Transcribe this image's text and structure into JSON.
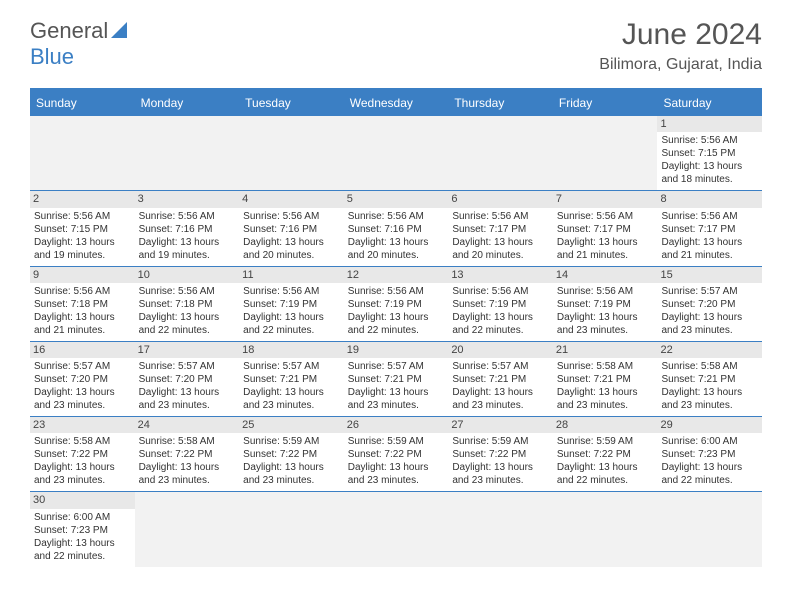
{
  "logo": {
    "part1": "General",
    "part2": "Blue"
  },
  "header": {
    "month_title": "June 2024",
    "location": "Bilimora, Gujarat, India"
  },
  "colors": {
    "brand": "#3b7fc4",
    "text": "#555555",
    "cell_header_bg": "#e8e8e8",
    "empty_bg": "#f2f2f2"
  },
  "weekdays": [
    "Sunday",
    "Monday",
    "Tuesday",
    "Wednesday",
    "Thursday",
    "Friday",
    "Saturday"
  ],
  "weeks": [
    [
      null,
      null,
      null,
      null,
      null,
      null,
      {
        "n": "1",
        "sunrise": "Sunrise: 5:56 AM",
        "sunset": "Sunset: 7:15 PM",
        "daylight": "Daylight: 13 hours and 18 minutes."
      }
    ],
    [
      {
        "n": "2",
        "sunrise": "Sunrise: 5:56 AM",
        "sunset": "Sunset: 7:15 PM",
        "daylight": "Daylight: 13 hours and 19 minutes."
      },
      {
        "n": "3",
        "sunrise": "Sunrise: 5:56 AM",
        "sunset": "Sunset: 7:16 PM",
        "daylight": "Daylight: 13 hours and 19 minutes."
      },
      {
        "n": "4",
        "sunrise": "Sunrise: 5:56 AM",
        "sunset": "Sunset: 7:16 PM",
        "daylight": "Daylight: 13 hours and 20 minutes."
      },
      {
        "n": "5",
        "sunrise": "Sunrise: 5:56 AM",
        "sunset": "Sunset: 7:16 PM",
        "daylight": "Daylight: 13 hours and 20 minutes."
      },
      {
        "n": "6",
        "sunrise": "Sunrise: 5:56 AM",
        "sunset": "Sunset: 7:17 PM",
        "daylight": "Daylight: 13 hours and 20 minutes."
      },
      {
        "n": "7",
        "sunrise": "Sunrise: 5:56 AM",
        "sunset": "Sunset: 7:17 PM",
        "daylight": "Daylight: 13 hours and 21 minutes."
      },
      {
        "n": "8",
        "sunrise": "Sunrise: 5:56 AM",
        "sunset": "Sunset: 7:17 PM",
        "daylight": "Daylight: 13 hours and 21 minutes."
      }
    ],
    [
      {
        "n": "9",
        "sunrise": "Sunrise: 5:56 AM",
        "sunset": "Sunset: 7:18 PM",
        "daylight": "Daylight: 13 hours and 21 minutes."
      },
      {
        "n": "10",
        "sunrise": "Sunrise: 5:56 AM",
        "sunset": "Sunset: 7:18 PM",
        "daylight": "Daylight: 13 hours and 22 minutes."
      },
      {
        "n": "11",
        "sunrise": "Sunrise: 5:56 AM",
        "sunset": "Sunset: 7:19 PM",
        "daylight": "Daylight: 13 hours and 22 minutes."
      },
      {
        "n": "12",
        "sunrise": "Sunrise: 5:56 AM",
        "sunset": "Sunset: 7:19 PM",
        "daylight": "Daylight: 13 hours and 22 minutes."
      },
      {
        "n": "13",
        "sunrise": "Sunrise: 5:56 AM",
        "sunset": "Sunset: 7:19 PM",
        "daylight": "Daylight: 13 hours and 22 minutes."
      },
      {
        "n": "14",
        "sunrise": "Sunrise: 5:56 AM",
        "sunset": "Sunset: 7:19 PM",
        "daylight": "Daylight: 13 hours and 23 minutes."
      },
      {
        "n": "15",
        "sunrise": "Sunrise: 5:57 AM",
        "sunset": "Sunset: 7:20 PM",
        "daylight": "Daylight: 13 hours and 23 minutes."
      }
    ],
    [
      {
        "n": "16",
        "sunrise": "Sunrise: 5:57 AM",
        "sunset": "Sunset: 7:20 PM",
        "daylight": "Daylight: 13 hours and 23 minutes."
      },
      {
        "n": "17",
        "sunrise": "Sunrise: 5:57 AM",
        "sunset": "Sunset: 7:20 PM",
        "daylight": "Daylight: 13 hours and 23 minutes."
      },
      {
        "n": "18",
        "sunrise": "Sunrise: 5:57 AM",
        "sunset": "Sunset: 7:21 PM",
        "daylight": "Daylight: 13 hours and 23 minutes."
      },
      {
        "n": "19",
        "sunrise": "Sunrise: 5:57 AM",
        "sunset": "Sunset: 7:21 PM",
        "daylight": "Daylight: 13 hours and 23 minutes."
      },
      {
        "n": "20",
        "sunrise": "Sunrise: 5:57 AM",
        "sunset": "Sunset: 7:21 PM",
        "daylight": "Daylight: 13 hours and 23 minutes."
      },
      {
        "n": "21",
        "sunrise": "Sunrise: 5:58 AM",
        "sunset": "Sunset: 7:21 PM",
        "daylight": "Daylight: 13 hours and 23 minutes."
      },
      {
        "n": "22",
        "sunrise": "Sunrise: 5:58 AM",
        "sunset": "Sunset: 7:21 PM",
        "daylight": "Daylight: 13 hours and 23 minutes."
      }
    ],
    [
      {
        "n": "23",
        "sunrise": "Sunrise: 5:58 AM",
        "sunset": "Sunset: 7:22 PM",
        "daylight": "Daylight: 13 hours and 23 minutes."
      },
      {
        "n": "24",
        "sunrise": "Sunrise: 5:58 AM",
        "sunset": "Sunset: 7:22 PM",
        "daylight": "Daylight: 13 hours and 23 minutes."
      },
      {
        "n": "25",
        "sunrise": "Sunrise: 5:59 AM",
        "sunset": "Sunset: 7:22 PM",
        "daylight": "Daylight: 13 hours and 23 minutes."
      },
      {
        "n": "26",
        "sunrise": "Sunrise: 5:59 AM",
        "sunset": "Sunset: 7:22 PM",
        "daylight": "Daylight: 13 hours and 23 minutes."
      },
      {
        "n": "27",
        "sunrise": "Sunrise: 5:59 AM",
        "sunset": "Sunset: 7:22 PM",
        "daylight": "Daylight: 13 hours and 23 minutes."
      },
      {
        "n": "28",
        "sunrise": "Sunrise: 5:59 AM",
        "sunset": "Sunset: 7:22 PM",
        "daylight": "Daylight: 13 hours and 22 minutes."
      },
      {
        "n": "29",
        "sunrise": "Sunrise: 6:00 AM",
        "sunset": "Sunset: 7:23 PM",
        "daylight": "Daylight: 13 hours and 22 minutes."
      }
    ],
    [
      {
        "n": "30",
        "sunrise": "Sunrise: 6:00 AM",
        "sunset": "Sunset: 7:23 PM",
        "daylight": "Daylight: 13 hours and 22 minutes."
      },
      null,
      null,
      null,
      null,
      null,
      null
    ]
  ]
}
